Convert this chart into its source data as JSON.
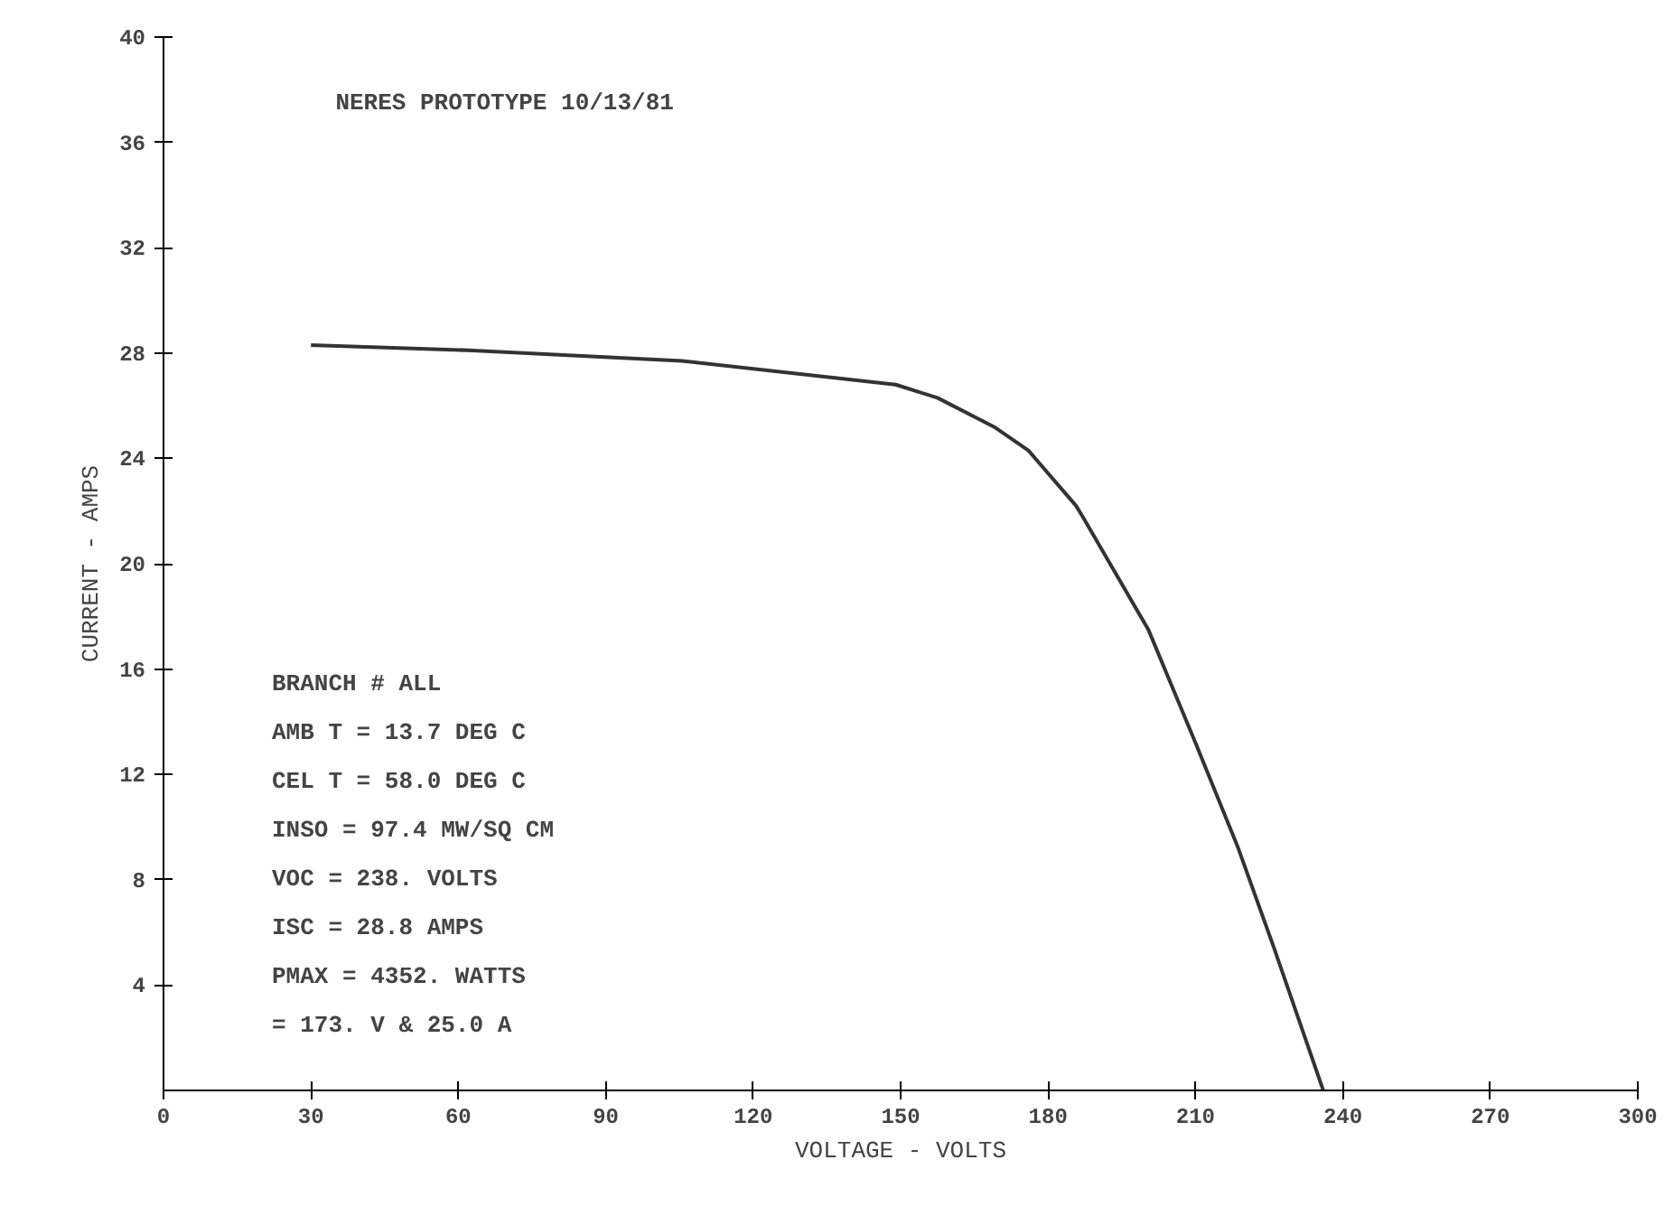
{
  "chart_data": {
    "type": "line",
    "title": "NERES PROTOTYPE 10/13/81",
    "xlabel": "VOLTAGE - VOLTS",
    "ylabel": "CURRENT - AMPS",
    "x": [
      30,
      63,
      105.5,
      149,
      157.5,
      169,
      176,
      185.7,
      187,
      200.4,
      210,
      218.7,
      226,
      236
    ],
    "series": [
      {
        "color": "#333333",
        "values": [
          28.3,
          28.1,
          27.7,
          26.8,
          26.3,
          25.2,
          24.3,
          22.2,
          21.8,
          17.5,
          13.2,
          9.2,
          5.4,
          0
        ]
      }
    ],
    "xlim": [
      0,
      300
    ],
    "ylim": [
      0,
      40
    ],
    "xticks": [
      0,
      30,
      60,
      90,
      120,
      150,
      180,
      210,
      240,
      270,
      300
    ],
    "yticks": [
      4,
      8,
      12,
      16,
      20,
      24,
      28,
      32,
      36,
      40
    ],
    "grid": false,
    "marker": "none",
    "line_style": "solid",
    "annotations": [
      "BRANCH # ALL",
      "AMB T = 13.7 DEG C",
      "CEL T = 58.0 DEG C",
      "INSO = 97.4 MW/SQ CM",
      "VOC = 238. VOLTS",
      "ISC = 28.8 AMPS",
      "PMAX = 4352. WATTS",
      "= 173. V & 25.0 A"
    ]
  }
}
